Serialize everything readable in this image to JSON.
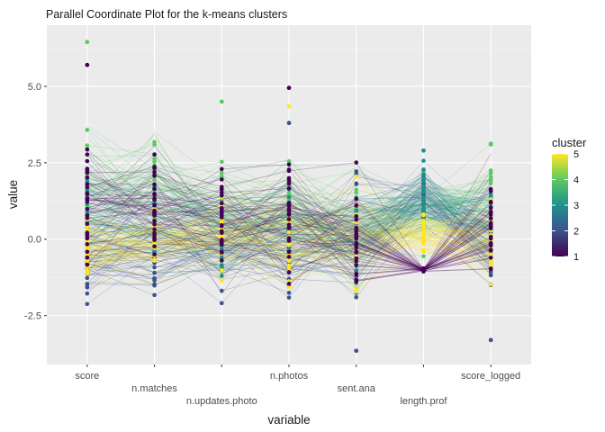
{
  "chart_data": {
    "type": "parallel_coordinates",
    "title": "Parallel Coordinate Plot for the k-means clusters",
    "xlabel": "variable",
    "ylabel": "value",
    "variables": [
      "score",
      "n.matches",
      "n.updates.photo",
      "n.photos",
      "sent.ana",
      "length.prof",
      "score_logged"
    ],
    "ylim": [
      -4.1,
      7.0
    ],
    "yticks": [
      -2.5,
      0.0,
      2.5,
      5.0
    ],
    "ytick_labels": [
      "-2.5",
      "0.0",
      "2.5",
      "5.0"
    ],
    "grid": true,
    "legend": {
      "title": "cluster",
      "position": "right",
      "range": [
        1,
        5
      ],
      "ticks": [
        1,
        2,
        3,
        4,
        5
      ],
      "palette": "viridis"
    },
    "clusters": [
      {
        "cluster": 1,
        "values": [
          0.9,
          1.0,
          0.6,
          0.7,
          0.2,
          -1.0,
          0.6
        ],
        "spread": [
          1.6,
          1.1,
          1.3,
          1.4,
          1.3,
          0.05,
          1.2
        ]
      },
      {
        "cluster": 2,
        "values": [
          -0.6,
          -0.5,
          -0.4,
          -0.5,
          0.2,
          1.4,
          -0.5
        ],
        "spread": [
          0.8,
          0.9,
          1.0,
          0.9,
          1.3,
          0.6,
          0.9
        ]
      },
      {
        "cluster": 3,
        "values": [
          0.6,
          0.5,
          0.4,
          0.4,
          0.1,
          1.5,
          0.4
        ],
        "spread": [
          1.3,
          1.2,
          1.2,
          1.2,
          1.3,
          0.7,
          1.1
        ]
      },
      {
        "cluster": 4,
        "values": [
          1.6,
          1.8,
          0.9,
          1.0,
          0.3,
          0.9,
          1.4
        ],
        "spread": [
          1.4,
          1.1,
          1.2,
          1.1,
          1.2,
          0.7,
          0.9
        ]
      },
      {
        "cluster": 5,
        "values": [
          -0.3,
          -0.2,
          0.1,
          0.0,
          0.0,
          0.2,
          -0.3
        ],
        "spread": [
          0.8,
          0.8,
          1.0,
          1.0,
          1.2,
          0.4,
          1.0
        ]
      }
    ],
    "notable_points": [
      {
        "variable": "score",
        "value": 6.45,
        "cluster": 4
      },
      {
        "variable": "score",
        "value": 5.7,
        "cluster": 1
      },
      {
        "variable": "n.updates.photo",
        "value": 4.5,
        "cluster": 4
      },
      {
        "variable": "n.photos",
        "value": 4.95,
        "cluster": 1
      },
      {
        "variable": "n.photos",
        "value": 4.35,
        "cluster": 5
      },
      {
        "variable": "n.photos",
        "value": 3.8,
        "cluster": 2
      },
      {
        "variable": "sent.ana",
        "value": -3.65,
        "cluster": 2
      },
      {
        "variable": "length.prof",
        "value": 2.9,
        "cluster": 3
      },
      {
        "variable": "score_logged",
        "value": 3.1,
        "cluster": 4
      },
      {
        "variable": "score_logged",
        "value": -3.3,
        "cluster": 2
      }
    ]
  }
}
